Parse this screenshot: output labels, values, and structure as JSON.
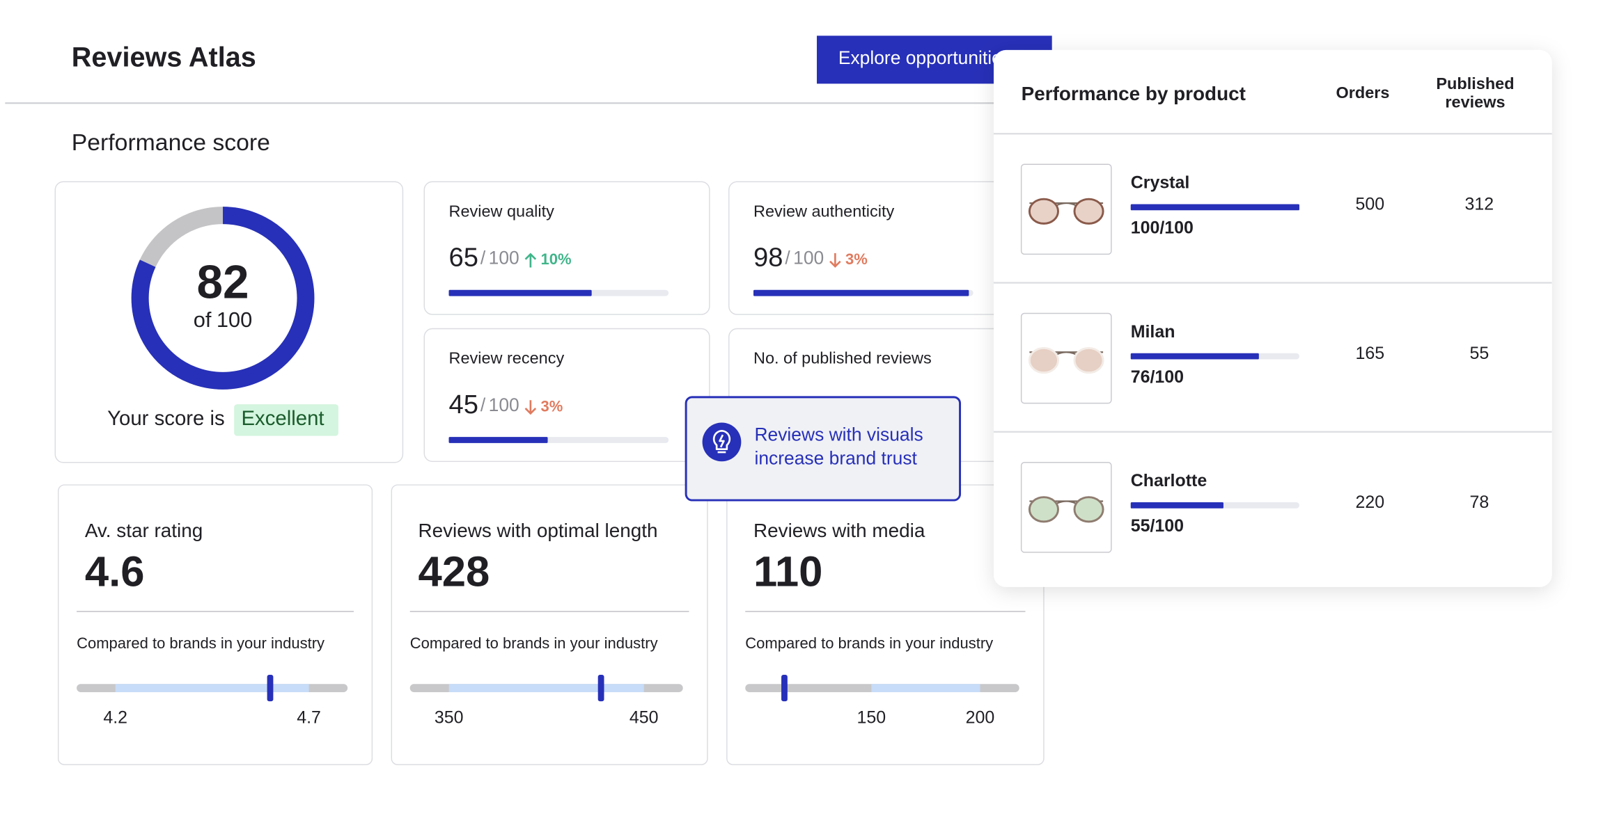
{
  "header": {
    "title": "Reviews Atlas",
    "button": "Explore opportunities"
  },
  "section_title": "Performance score",
  "score": {
    "value": 82,
    "max_prefix": "of",
    "max": 100,
    "caption": "Your score is",
    "rating": "Excellent"
  },
  "metrics": [
    {
      "label": "Review quality",
      "value": 65,
      "separator": "/",
      "max": 100,
      "change": "10%",
      "direction": "up"
    },
    {
      "label": "Review authenticity",
      "value": 98,
      "separator": "/",
      "max": 100,
      "change": "3%",
      "direction": "down"
    },
    {
      "label": "Review recency",
      "value": 45,
      "separator": "/",
      "max": 100,
      "change": "3%",
      "direction": "down"
    },
    {
      "label": "No. of published reviews"
    }
  ],
  "tooltip": {
    "lines": [
      "Reviews with visuals",
      "increase brand trust"
    ]
  },
  "benchmarks": [
    {
      "title": "Av. star rating",
      "value": 4.6,
      "comparison": "Compared to brands in your industry",
      "low": 4.2,
      "high": 4.7
    },
    {
      "title": "Reviews with optimal length",
      "value": 428,
      "comparison": "Compared to brands in your industry",
      "low": 350,
      "high": 450
    },
    {
      "title": "Reviews with media",
      "value": 110,
      "comparison": "Compared to brands in your industry",
      "low": 150,
      "high": 200
    }
  ],
  "products": {
    "title": "Performance by product",
    "orders_header": "Orders",
    "reviews_header": [
      "Published",
      "reviews"
    ],
    "rows": [
      {
        "name": "Crystal",
        "score": 100,
        "separator": "/",
        "max": 100,
        "orders": 500,
        "reviews": 312
      },
      {
        "name": "Milan",
        "score": 76,
        "separator": "/",
        "max": 100,
        "orders": 165,
        "reviews": 55
      },
      {
        "name": "Charlotte",
        "score": 55,
        "separator": "/",
        "max": 100,
        "orders": 220,
        "reviews": 78
      }
    ]
  }
}
